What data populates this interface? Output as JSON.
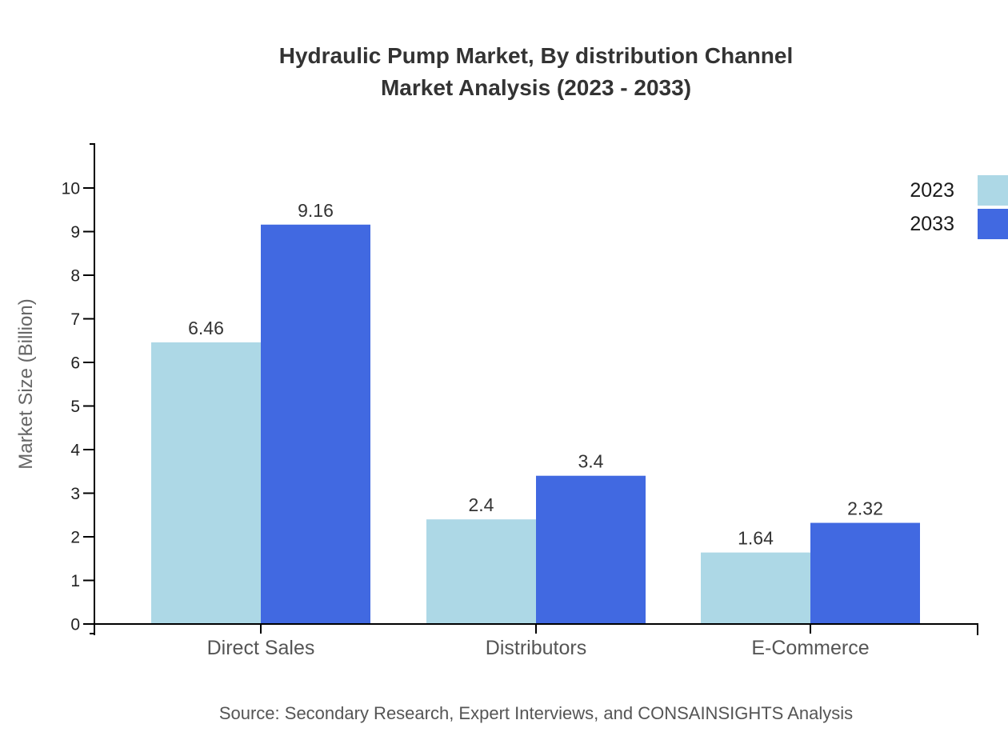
{
  "title": {
    "line1": "Hydraulic Pump Market, By distribution Channel",
    "line2": "Market Analysis (2023 - 2033)"
  },
  "legend": [
    {
      "label": "2023",
      "color": "#ADD8E6"
    },
    {
      "label": "2033",
      "color": "#4169E1"
    }
  ],
  "source": "Source: Secondary Research, Expert Interviews, and CONSAINSIGHTS Analysis",
  "chart_data": {
    "type": "bar",
    "title": "Hydraulic Pump Market, By distribution Channel Market Analysis (2023 - 2033)",
    "categories": [
      "Direct Sales",
      "Distributors",
      "E-Commerce"
    ],
    "series": [
      {
        "name": "2023",
        "color": "#ADD8E6",
        "values": [
          6.46,
          2.4,
          1.64
        ],
        "labels": [
          "6.46",
          "2.4",
          "1.64"
        ]
      },
      {
        "name": "2033",
        "color": "#4169E1",
        "values": [
          9.16,
          3.4,
          2.32
        ],
        "labels": [
          "9.16",
          "3.4",
          "2.32"
        ]
      }
    ],
    "xlabel": "",
    "ylabel": "Market Size (Billion)",
    "ylim": [
      0,
      10
    ],
    "yticks": [
      0,
      1,
      2,
      3,
      4,
      5,
      6,
      7,
      8,
      9,
      10
    ],
    "grid": false,
    "legend_position": "top-right"
  },
  "colors": {
    "axis": "#000000",
    "title_text": "#333333",
    "tick_text": "#222222",
    "value_text": "#333333",
    "category_text": "#555555",
    "muted_text": "#666666"
  }
}
